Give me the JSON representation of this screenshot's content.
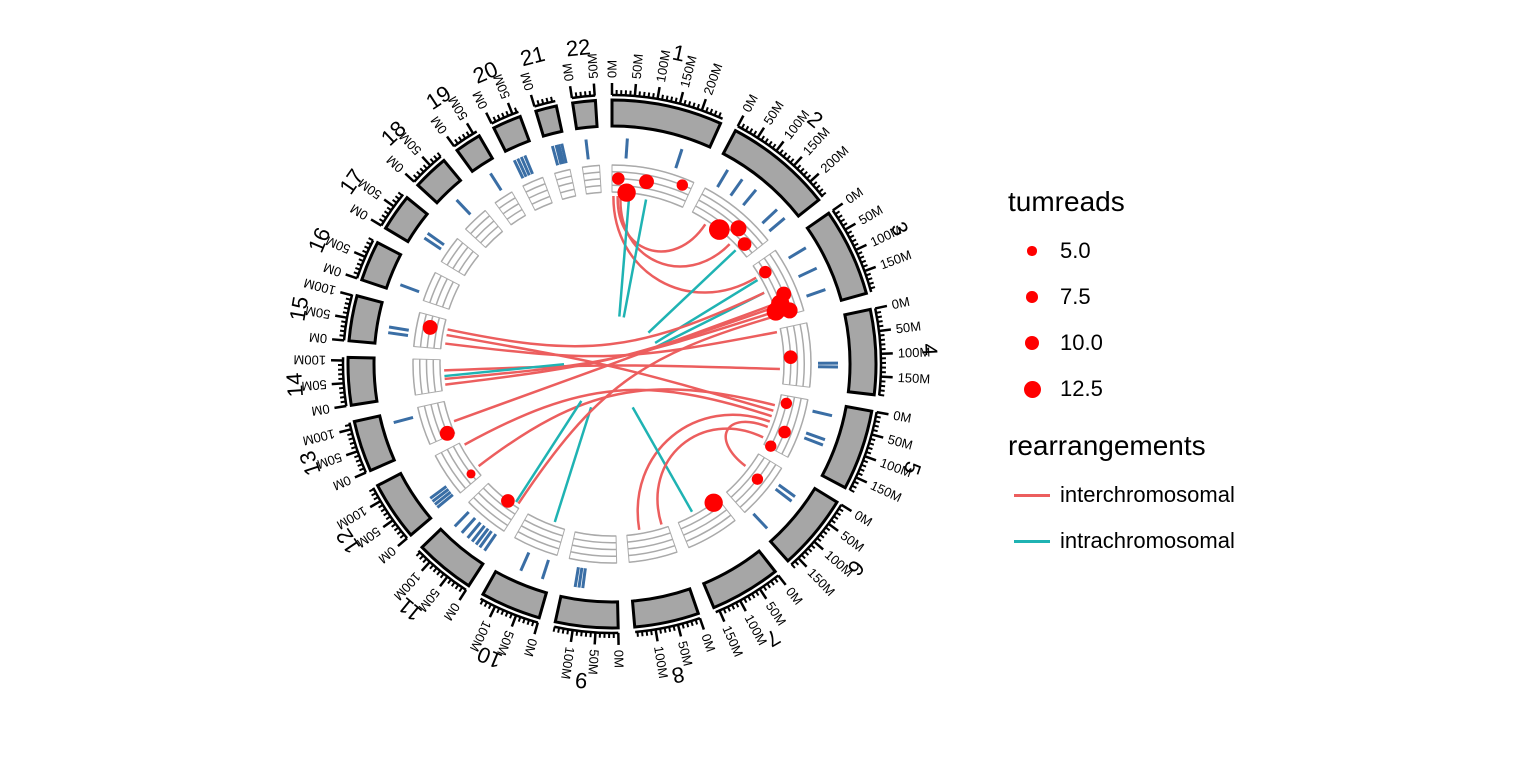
{
  "chart_data": {
    "type": "circos",
    "title": "",
    "chromosomes": [
      {
        "name": "1",
        "length": 249,
        "ticks": [
          "0M",
          "50M",
          "100M",
          "150M",
          "200M"
        ]
      },
      {
        "name": "2",
        "length": 243,
        "ticks": [
          "0M",
          "50M",
          "100M",
          "150M",
          "200M"
        ]
      },
      {
        "name": "3",
        "length": 198,
        "ticks": [
          "0M",
          "50M",
          "100M",
          "150M"
        ]
      },
      {
        "name": "4",
        "length": 191,
        "ticks": [
          "0M",
          "50M",
          "100M",
          "150M"
        ]
      },
      {
        "name": "5",
        "length": 181,
        "ticks": [
          "0M",
          "50M",
          "100M",
          "150M"
        ]
      },
      {
        "name": "6",
        "length": 171,
        "ticks": [
          "0M",
          "50M",
          "100M",
          "150M"
        ]
      },
      {
        "name": "7",
        "length": 159,
        "ticks": [
          "0M",
          "50M",
          "100M",
          "150M"
        ]
      },
      {
        "name": "8",
        "length": 145,
        "ticks": [
          "0M",
          "50M",
          "100M"
        ]
      },
      {
        "name": "9",
        "length": 141,
        "ticks": [
          "0M",
          "50M",
          "100M"
        ]
      },
      {
        "name": "10",
        "length": 136,
        "ticks": [
          "0M",
          "50M",
          "100M"
        ]
      },
      {
        "name": "11",
        "length": 135,
        "ticks": [
          "0M",
          "50M",
          "100M"
        ]
      },
      {
        "name": "12",
        "length": 133,
        "ticks": [
          "0M",
          "50M",
          "100M"
        ]
      },
      {
        "name": "13",
        "length": 115,
        "ticks": [
          "0M",
          "50M",
          "100M"
        ]
      },
      {
        "name": "14",
        "length": 107,
        "ticks": [
          "0M",
          "50M",
          "100M"
        ]
      },
      {
        "name": "15",
        "length": 102,
        "ticks": [
          "0M",
          "50M",
          "100M"
        ]
      },
      {
        "name": "16",
        "length": 90,
        "ticks": [
          "0M",
          "50M"
        ]
      },
      {
        "name": "17",
        "length": 83,
        "ticks": [
          "0M",
          "50M"
        ]
      },
      {
        "name": "18",
        "length": 80,
        "ticks": [
          "0M",
          "50M"
        ]
      },
      {
        "name": "19",
        "length": 59,
        "ticks": [
          "0M",
          "50M"
        ]
      },
      {
        "name": "20",
        "length": 64,
        "ticks": [
          "0M",
          "50M"
        ]
      },
      {
        "name": "21",
        "length": 47,
        "ticks": [
          "0M"
        ]
      },
      {
        "name": "22",
        "length": 51,
        "ticks": [
          "0M",
          "50M"
        ]
      }
    ],
    "segments": [
      {
        "chr": "1",
        "pos": 40
      },
      {
        "chr": "1",
        "pos": 185
      },
      {
        "chr": "2",
        "pos": 30
      },
      {
        "chr": "2",
        "pos": 75
      },
      {
        "chr": "2",
        "pos": 120
      },
      {
        "chr": "2",
        "pos": 195
      },
      {
        "chr": "2",
        "pos": 225
      },
      {
        "chr": "3",
        "pos": 40
      },
      {
        "chr": "3",
        "pos": 100
      },
      {
        "chr": "3",
        "pos": 160
      },
      {
        "chr": "4",
        "pos": 120
      },
      {
        "chr": "4",
        "pos": 130
      },
      {
        "chr": "5",
        "pos": 30
      },
      {
        "chr": "5",
        "pos": 95
      },
      {
        "chr": "5",
        "pos": 110
      },
      {
        "chr": "6",
        "pos": 45
      },
      {
        "chr": "6",
        "pos": 60
      },
      {
        "chr": "6",
        "pos": 155
      },
      {
        "chr": "9",
        "pos": 90
      },
      {
        "chr": "9",
        "pos": 100
      },
      {
        "chr": "9",
        "pos": 110
      },
      {
        "chr": "10",
        "pos": 20
      },
      {
        "chr": "10",
        "pos": 80
      },
      {
        "chr": "11",
        "pos": 15
      },
      {
        "chr": "11",
        "pos": 30
      },
      {
        "chr": "11",
        "pos": 42
      },
      {
        "chr": "11",
        "pos": 55
      },
      {
        "chr": "11",
        "pos": 70
      },
      {
        "chr": "11",
        "pos": 90
      },
      {
        "chr": "11",
        "pos": 115
      },
      {
        "chr": "12",
        "pos": 10
      },
      {
        "chr": "12",
        "pos": 20
      },
      {
        "chr": "12",
        "pos": 30
      },
      {
        "chr": "12",
        "pos": 40
      },
      {
        "chr": "13",
        "pos": 90
      },
      {
        "chr": "15",
        "pos": 30
      },
      {
        "chr": "15",
        "pos": 45
      },
      {
        "chr": "16",
        "pos": 20
      },
      {
        "chr": "17",
        "pos": 30
      },
      {
        "chr": "17",
        "pos": 45
      },
      {
        "chr": "18",
        "pos": 40
      },
      {
        "chr": "19",
        "pos": 35
      },
      {
        "chr": "20",
        "pos": 10
      },
      {
        "chr": "20",
        "pos": 20
      },
      {
        "chr": "20",
        "pos": 30
      },
      {
        "chr": "20",
        "pos": 40
      },
      {
        "chr": "21",
        "pos": 15
      },
      {
        "chr": "21",
        "pos": 25
      },
      {
        "chr": "21",
        "pos": 32
      },
      {
        "chr": "21",
        "pos": 40
      },
      {
        "chr": "22",
        "pos": 20
      }
    ],
    "points": [
      {
        "chr": "1",
        "pos": 20,
        "level": 3,
        "tumreads": 7
      },
      {
        "chr": "1",
        "pos": 50,
        "level": 1,
        "tumreads": 12
      },
      {
        "chr": "1",
        "pos": 110,
        "level": 3,
        "tumreads": 9
      },
      {
        "chr": "1",
        "pos": 220,
        "level": 4,
        "tumreads": 6
      },
      {
        "chr": "2",
        "pos": 110,
        "level": 1,
        "tumreads": 14
      },
      {
        "chr": "2",
        "pos": 155,
        "level": 3,
        "tumreads": 10
      },
      {
        "chr": "2",
        "pos": 205,
        "level": 2,
        "tumreads": 8
      },
      {
        "chr": "3",
        "pos": 40,
        "level": 2,
        "tumreads": 7
      },
      {
        "chr": "3",
        "pos": 130,
        "level": 3,
        "tumreads": 9
      },
      {
        "chr": "3",
        "pos": 155,
        "level": 2,
        "tumreads": 12
      },
      {
        "chr": "3",
        "pos": 175,
        "level": 1,
        "tumreads": 12
      },
      {
        "chr": "3",
        "pos": 185,
        "level": 3,
        "tumreads": 10
      },
      {
        "chr": "4",
        "pos": 100,
        "level": 2,
        "tumreads": 8
      },
      {
        "chr": "5",
        "pos": 25,
        "level": 2,
        "tumreads": 6
      },
      {
        "chr": "5",
        "pos": 115,
        "level": 3,
        "tumreads": 7
      },
      {
        "chr": "5",
        "pos": 175,
        "level": 2,
        "tumreads": 6
      },
      {
        "chr": "6",
        "pos": 70,
        "level": 3,
        "tumreads": 6
      },
      {
        "chr": "7",
        "pos": 20,
        "level": 1,
        "tumreads": 12
      },
      {
        "chr": "11",
        "pos": 45,
        "level": 1,
        "tumreads": 8
      },
      {
        "chr": "12",
        "pos": 25,
        "level": 2,
        "tumreads": 4
      },
      {
        "chr": "13",
        "pos": 10,
        "level": 2,
        "tumreads": 9
      },
      {
        "chr": "15",
        "pos": 65,
        "level": 3,
        "tumreads": 9
      }
    ],
    "links": [
      {
        "type": "interchromosomal",
        "from": {
          "chr": "1",
          "pos": 5
        },
        "to": {
          "chr": "3",
          "pos": 40
        }
      },
      {
        "type": "interchromosomal",
        "from": {
          "chr": "1",
          "pos": 30
        },
        "to": {
          "chr": "2",
          "pos": 170
        }
      },
      {
        "type": "interchromosomal",
        "from": {
          "chr": "1",
          "pos": 20
        },
        "to": {
          "chr": "2",
          "pos": 60
        }
      },
      {
        "type": "intrachromosomal",
        "from": {
          "chr": "1",
          "pos": 60
        },
        "to": {
          "chr": "1",
          "pos": 90
        }
      },
      {
        "type": "intrachromosomal",
        "from": {
          "chr": "1",
          "pos": 120
        },
        "to": {
          "chr": "1",
          "pos": 145
        }
      },
      {
        "type": "intrachromosomal",
        "from": {
          "chr": "2",
          "pos": 200
        },
        "to": {
          "chr": "2",
          "pos": 220
        }
      },
      {
        "type": "intrachromosomal",
        "from": {
          "chr": "3",
          "pos": 50
        },
        "to": {
          "chr": "3",
          "pos": 90
        }
      },
      {
        "type": "intrachromosomal",
        "from": {
          "chr": "3",
          "pos": 100
        },
        "to": {
          "chr": "3",
          "pos": 140
        }
      },
      {
        "type": "interchromosomal",
        "from": {
          "chr": "15",
          "pos": 70
        },
        "to": {
          "chr": "3",
          "pos": 100
        }
      },
      {
        "type": "interchromosomal",
        "from": {
          "chr": "15",
          "pos": 20
        },
        "to": {
          "chr": "4",
          "pos": 10
        }
      },
      {
        "type": "interchromosomal",
        "from": {
          "chr": "14",
          "pos": 70
        },
        "to": {
          "chr": "4",
          "pos": 140
        }
      },
      {
        "type": "interchromosomal",
        "from": {
          "chr": "14",
          "pos": 20
        },
        "to": {
          "chr": "3",
          "pos": 160
        }
      },
      {
        "type": "interchromosomal",
        "from": {
          "chr": "13",
          "pos": 40
        },
        "to": {
          "chr": "3",
          "pos": 150
        }
      },
      {
        "type": "interchromosomal",
        "from": {
          "chr": "12",
          "pos": 120
        },
        "to": {
          "chr": "5",
          "pos": 80
        }
      },
      {
        "type": "interchromosomal",
        "from": {
          "chr": "12",
          "pos": 30
        },
        "to": {
          "chr": "5",
          "pos": 40
        }
      },
      {
        "type": "interchromosomal",
        "from": {
          "chr": "8",
          "pos": 100
        },
        "to": {
          "chr": "5",
          "pos": 100
        }
      },
      {
        "type": "interchromosomal",
        "from": {
          "chr": "5",
          "pos": 120
        },
        "to": {
          "chr": "6",
          "pos": 60
        }
      },
      {
        "type": "interchromosomal",
        "from": {
          "chr": "15",
          "pos": 50
        },
        "to": {
          "chr": "5",
          "pos": 60
        }
      },
      {
        "type": "interchromosomal",
        "from": {
          "chr": "3",
          "pos": 175
        },
        "to": {
          "chr": "14",
          "pos": 40
        }
      },
      {
        "type": "intrachromosomal",
        "from": {
          "chr": "14",
          "pos": 50
        },
        "to": {
          "chr": "14",
          "pos": 90
        }
      },
      {
        "type": "intrachromosomal",
        "from": {
          "chr": "11",
          "pos": 20
        },
        "to": {
          "chr": "11",
          "pos": 70
        }
      },
      {
        "type": "intrachromosomal",
        "from": {
          "chr": "10",
          "pos": 40
        },
        "to": {
          "chr": "10",
          "pos": 100
        }
      },
      {
        "type": "intrachromosomal",
        "from": {
          "chr": "7",
          "pos": 100
        },
        "to": {
          "chr": "7",
          "pos": 130
        }
      },
      {
        "type": "interchromosomal",
        "from": {
          "chr": "11",
          "pos": 10
        },
        "to": {
          "chr": "3",
          "pos": 190
        }
      },
      {
        "type": "interchromosomal",
        "from": {
          "chr": "8",
          "pos": 20
        },
        "to": {
          "chr": "5",
          "pos": 160
        }
      }
    ],
    "ideogram_color": "#a6a6a6",
    "segment_color": "#3a6ea5",
    "point_color": "#ff0000",
    "track_color": "#aaaaaa",
    "legend": {
      "position": "right",
      "tumreads": {
        "title": "tumreads",
        "entries": [
          {
            "label": "5.0",
            "value": 5
          },
          {
            "label": "7.5",
            "value": 7.5
          },
          {
            "label": "10.0",
            "value": 10
          },
          {
            "label": "12.5",
            "value": 12.5
          }
        ]
      },
      "rearrangements": {
        "title": "rearrangements",
        "entries": [
          {
            "label": "interchromosomal",
            "color": "#ec5e5e"
          },
          {
            "label": "intrachromosomal",
            "color": "#1fb3b3"
          }
        ]
      }
    }
  }
}
